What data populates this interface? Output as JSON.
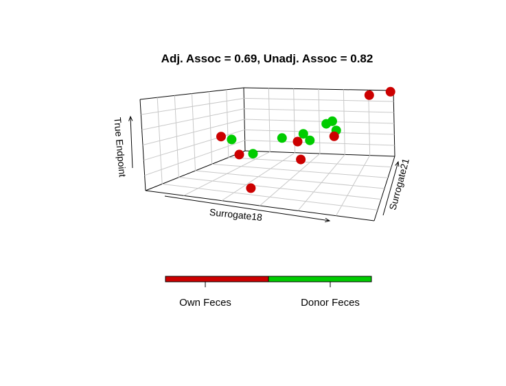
{
  "chart_data": {
    "type": "scatter",
    "title": "Adj. Assoc = 0.69, Unadj. Assoc = 0.82",
    "axes": {
      "x": "Surrogate18",
      "y": "Surrogate21",
      "z": "True Endpoint"
    },
    "grid": true,
    "legend_placement": "bottom",
    "series": [
      {
        "name": "Own Feces",
        "color": "#cc0000",
        "points": [
          {
            "x": 0.12,
            "y": 0.55,
            "z": 0.45
          },
          {
            "x": 0.3,
            "y": 0.35,
            "z": 0.35
          },
          {
            "x": 0.45,
            "y": 0.05,
            "z": 0.15
          },
          {
            "x": 0.55,
            "y": 0.5,
            "z": 0.5
          },
          {
            "x": 0.62,
            "y": 0.3,
            "z": 0.4
          },
          {
            "x": 0.72,
            "y": 0.6,
            "z": 0.55
          },
          {
            "x": 0.85,
            "y": 0.95,
            "z": 0.95
          },
          {
            "x": 0.98,
            "y": 1.0,
            "z": 0.98
          }
        ]
      },
      {
        "name": "Donor Feces",
        "color": "#00cc00",
        "points": [
          {
            "x": 0.2,
            "y": 0.5,
            "z": 0.45
          },
          {
            "x": 0.35,
            "y": 0.4,
            "z": 0.35
          },
          {
            "x": 0.45,
            "y": 0.55,
            "z": 0.5
          },
          {
            "x": 0.55,
            "y": 0.6,
            "z": 0.55
          },
          {
            "x": 0.6,
            "y": 0.55,
            "z": 0.5
          },
          {
            "x": 0.65,
            "y": 0.7,
            "z": 0.65
          },
          {
            "x": 0.68,
            "y": 0.72,
            "z": 0.68
          },
          {
            "x": 0.72,
            "y": 0.65,
            "z": 0.6
          }
        ]
      }
    ]
  },
  "legend": {
    "items": [
      {
        "label": "Own Feces",
        "color": "#cc0000"
      },
      {
        "label": "Donor Feces",
        "color": "#00cc00"
      }
    ]
  }
}
